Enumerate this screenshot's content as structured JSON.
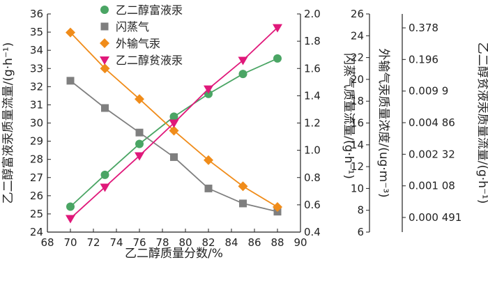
{
  "chart_data": {
    "type": "line",
    "xlabel": "乙二醇质量分数/%",
    "xlim": [
      68,
      90
    ],
    "x_ticks": [
      "68",
      "70",
      "72",
      "74",
      "76",
      "78",
      "80",
      "82",
      "84",
      "86",
      "88",
      "90"
    ],
    "x": [
      70,
      73,
      76,
      79,
      82,
      85,
      88
    ],
    "axes": {
      "y1": {
        "label": "乙二醇富液汞质量流量/(g·h⁻¹)",
        "ylim": [
          24,
          36
        ],
        "ticks": [
          "24",
          "25",
          "26",
          "27",
          "28",
          "29",
          "30",
          "31",
          "32",
          "33",
          "34",
          "35",
          "36"
        ]
      },
      "y2": {
        "label": "闪蒸气质量流量/(g·h⁻¹)",
        "ylim": [
          0.4,
          2.0
        ],
        "ticks": [
          "0.4",
          "0.6",
          "0.8",
          "1.0",
          "1.2",
          "1.4",
          "1.6",
          "1.8",
          "2.0"
        ]
      },
      "y3": {
        "label": "外输气汞质量浓度/(ug·m⁻³)",
        "ylim": [
          6,
          26
        ],
        "ticks": [
          "6",
          "8",
          "10",
          "12",
          "14",
          "16",
          "18",
          "20",
          "22",
          "24",
          "26"
        ]
      },
      "y4": {
        "label": "乙二醇贫液汞质量流量/(g·h⁻¹)",
        "ticks": [
          "0.000 491",
          "0.001 08",
          "0.002 32",
          "0.004 86",
          "0.009 9",
          "0.196",
          "0.378"
        ]
      }
    },
    "series": [
      {
        "name": "乙二醇富液汞",
        "axis": "y1",
        "marker": "circle",
        "color": "#4aa564",
        "values": [
          25.4,
          27.15,
          28.85,
          30.35,
          31.6,
          32.7,
          33.55
        ]
      },
      {
        "name": "闪蒸气",
        "axis": "y2",
        "marker": "square",
        "color": "#7f7f7f",
        "values": [
          1.51,
          1.31,
          1.13,
          0.95,
          0.72,
          0.61,
          0.55
        ]
      },
      {
        "name": "外输气汞",
        "axis": "y3",
        "marker": "diamond",
        "color": "#f08c1a",
        "values": [
          24.3,
          21.0,
          18.2,
          15.3,
          12.6,
          10.2,
          8.3
        ]
      },
      {
        "name": "乙二醇贫液汞",
        "axis": "y2",
        "marker": "triangle",
        "color": "#e0187a",
        "values": [
          0.5,
          0.73,
          0.96,
          1.2,
          1.45,
          1.66,
          1.9
        ]
      }
    ],
    "legend_position": "top-left"
  }
}
